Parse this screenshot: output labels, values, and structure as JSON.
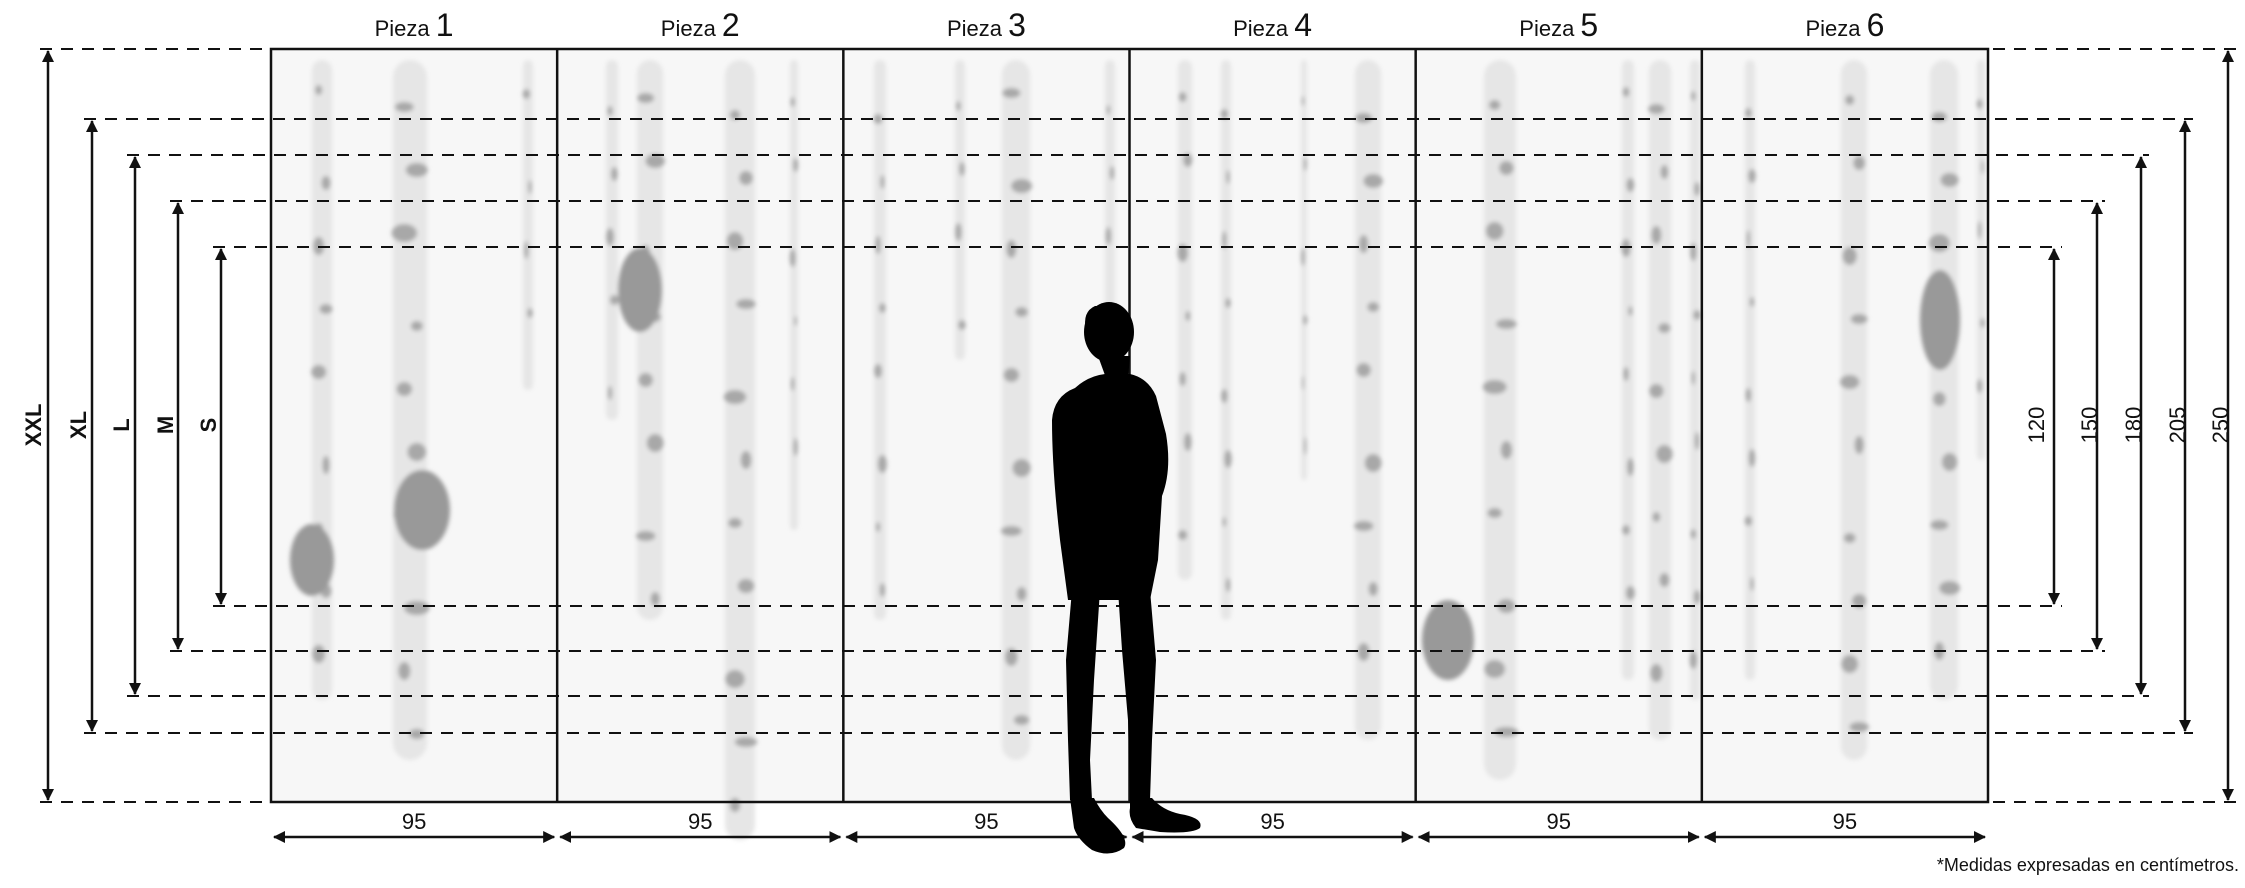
{
  "panels": [
    {
      "prefix": "Pieza",
      "number": "1",
      "width_label": "95"
    },
    {
      "prefix": "Pieza",
      "number": "2",
      "width_label": "95"
    },
    {
      "prefix": "Pieza",
      "number": "3",
      "width_label": "95"
    },
    {
      "prefix": "Pieza",
      "number": "4",
      "width_label": "95"
    },
    {
      "prefix": "Pieza",
      "number": "5",
      "width_label": "95"
    },
    {
      "prefix": "Pieza",
      "number": "6",
      "width_label": "95"
    }
  ],
  "sizes": [
    {
      "label": "XXL",
      "height_label": "250"
    },
    {
      "label": "XL",
      "height_label": "205"
    },
    {
      "label": "L",
      "height_label": "180"
    },
    {
      "label": "M",
      "height_label": "150"
    },
    {
      "label": "S",
      "height_label": "120"
    }
  ],
  "note": "*Medidas expresadas en centímetros.",
  "colors": {
    "line": "#111111",
    "panel_bg": "#f7f7f7",
    "trunk": "#e9e9e9",
    "bark": "#9a9a9a",
    "person": "#000000"
  },
  "icons": {
    "person": "standing-person-silhouette-icon"
  }
}
